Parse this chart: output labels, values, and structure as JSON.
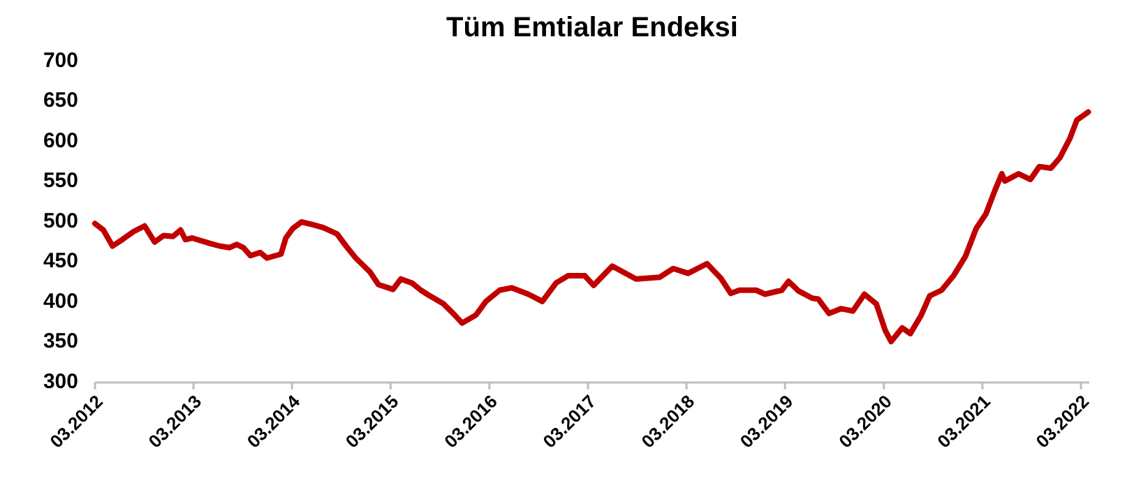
{
  "chart_data": {
    "type": "line",
    "title": "Tüm Emtialar Endeksi",
    "xlim": [
      "2012-03-01",
      "2022-04-01"
    ],
    "xticks": [
      {
        "value": "2012-03-01",
        "label": "03.2012"
      },
      {
        "value": "2013-03-01",
        "label": "03.2013"
      },
      {
        "value": "2014-03-01",
        "label": "03.2014"
      },
      {
        "value": "2015-03-01",
        "label": "03.2015"
      },
      {
        "value": "2016-03-01",
        "label": "03.2016"
      },
      {
        "value": "2017-03-01",
        "label": "03.2017"
      },
      {
        "value": "2018-03-01",
        "label": "03.2018"
      },
      {
        "value": "2019-03-01",
        "label": "03.2019"
      },
      {
        "value": "2020-03-01",
        "label": "03.2020"
      },
      {
        "value": "2021-03-01",
        "label": "03.2021"
      },
      {
        "value": "2022-03-01",
        "label": "03.2022"
      }
    ],
    "ylim": [
      300,
      700
    ],
    "yticks": [
      300,
      350,
      400,
      450,
      500,
      550,
      600,
      650,
      700
    ],
    "grid": false,
    "marker": "none",
    "line_style": "solid",
    "x": [
      "2012-03-01",
      "2012-04-01",
      "2012-05-05",
      "2012-06-10",
      "2012-07-22",
      "2012-09-01",
      "2012-10-08",
      "2012-11-10",
      "2012-12-15",
      "2013-01-12",
      "2013-01-30",
      "2013-02-24",
      "2013-05-04",
      "2013-06-06",
      "2013-07-12",
      "2013-08-08",
      "2013-09-02",
      "2013-09-28",
      "2013-11-03",
      "2013-11-28",
      "2014-01-19",
      "2014-02-06",
      "2014-03-04",
      "2014-04-05",
      "2014-05-12",
      "2014-06-25",
      "2014-08-15",
      "2014-09-17",
      "2014-10-23",
      "2014-12-14",
      "2015-01-15",
      "2015-03-10",
      "2015-04-08",
      "2015-05-19",
      "2015-06-21",
      "2015-07-24",
      "2015-09-13",
      "2015-10-19",
      "2015-11-21",
      "2016-01-11",
      "2016-02-17",
      "2016-04-08",
      "2016-05-22",
      "2016-07-23",
      "2016-09-13",
      "2016-11-03",
      "2016-12-17",
      "2017-02-17",
      "2017-03-22",
      "2017-05-30",
      "2017-08-26",
      "2017-11-21",
      "2018-01-11",
      "2018-03-07",
      "2018-05-16",
      "2018-07-06",
      "2018-08-12",
      "2018-09-13",
      "2018-11-14",
      "2018-12-17",
      "2019-02-17",
      "2019-03-14",
      "2019-04-20",
      "2019-06-10",
      "2019-07-02",
      "2019-08-11",
      "2019-09-24",
      "2019-11-07",
      "2019-12-20",
      "2020-02-02",
      "2020-03-06",
      "2020-03-28",
      "2020-05-08",
      "2020-06-07",
      "2020-07-16",
      "2020-08-18",
      "2020-10-01",
      "2020-11-14",
      "2020-12-28",
      "2021-02-06",
      "2021-03-14",
      "2021-04-16",
      "2021-05-12",
      "2021-05-23",
      "2021-07-13",
      "2021-08-26",
      "2021-09-28",
      "2021-11-10",
      "2021-12-13",
      "2022-01-19",
      "2022-02-14",
      "2022-03-28"
    ],
    "series": [
      {
        "color": "#c00000",
        "values": [
          498,
          490,
          470,
          478,
          488,
          495,
          475,
          483,
          482,
          490,
          478,
          480,
          473,
          470,
          468,
          472,
          468,
          458,
          462,
          455,
          460,
          480,
          492,
          500,
          497,
          493,
          485,
          470,
          455,
          438,
          422,
          416,
          429,
          424,
          415,
          408,
          398,
          386,
          374,
          384,
          401,
          415,
          418,
          410,
          401,
          424,
          433,
          433,
          421,
          445,
          429,
          431,
          442,
          436,
          448,
          430,
          411,
          415,
          415,
          410,
          415,
          426,
          414,
          405,
          404,
          386,
          392,
          389,
          410,
          398,
          365,
          351,
          368,
          361,
          383,
          408,
          415,
          433,
          457,
          492,
          510,
          539,
          560,
          551,
          560,
          553,
          569,
          567,
          580,
          604,
          627,
          637
        ]
      }
    ]
  }
}
